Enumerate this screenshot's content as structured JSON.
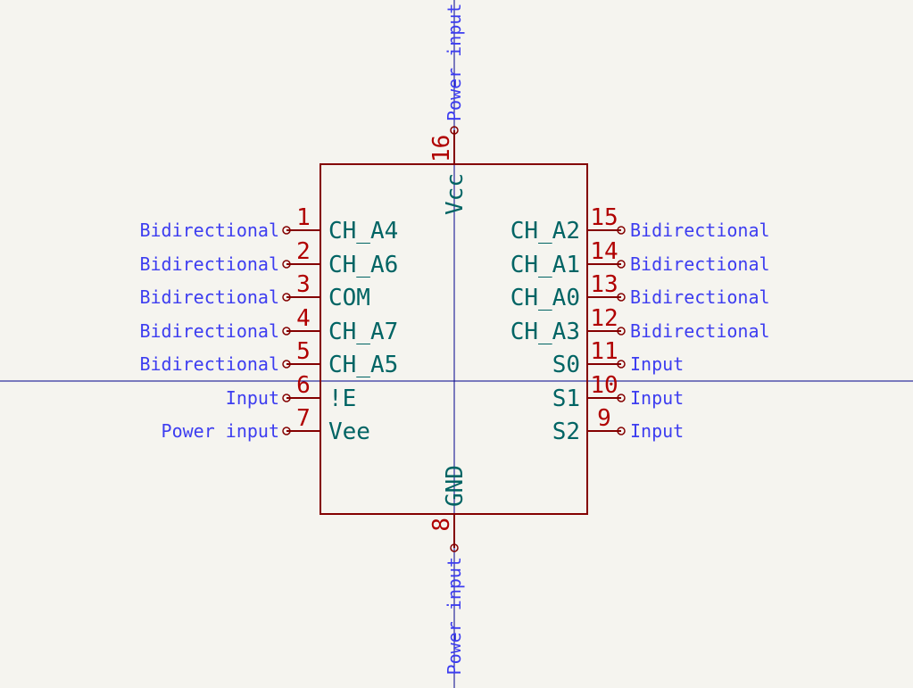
{
  "colors": {
    "background": "#f5f4ef",
    "body_outline": "#840000",
    "pin_number": "#b00000",
    "pin_name": "#006464",
    "electrical_type": "#3d3df0",
    "crosshair": "#00008b"
  },
  "pins": {
    "left": [
      {
        "number": "1",
        "name": "CH_A4",
        "type": "Bidirectional"
      },
      {
        "number": "2",
        "name": "CH_A6",
        "type": "Bidirectional"
      },
      {
        "number": "3",
        "name": "COM",
        "type": "Bidirectional"
      },
      {
        "number": "4",
        "name": "CH_A7",
        "type": "Bidirectional"
      },
      {
        "number": "5",
        "name": "CH_A5",
        "type": "Bidirectional"
      },
      {
        "number": "6",
        "name": "!E",
        "type": "Input"
      },
      {
        "number": "7",
        "name": "Vee",
        "type": "Power input"
      }
    ],
    "right": [
      {
        "number": "15",
        "name": "CH_A2",
        "type": "Bidirectional"
      },
      {
        "number": "14",
        "name": "CH_A1",
        "type": "Bidirectional"
      },
      {
        "number": "13",
        "name": "CH_A0",
        "type": "Bidirectional"
      },
      {
        "number": "12",
        "name": "CH_A3",
        "type": "Bidirectional"
      },
      {
        "number": "11",
        "name": "S0",
        "type": "Input"
      },
      {
        "number": "10",
        "name": "S1",
        "type": "Input"
      },
      {
        "number": "9",
        "name": "S2",
        "type": "Input"
      }
    ],
    "top": {
      "number": "16",
      "name": "Vcc",
      "type": "Power input"
    },
    "bottom": {
      "number": "8",
      "name": "GND",
      "type": "Power input"
    }
  }
}
